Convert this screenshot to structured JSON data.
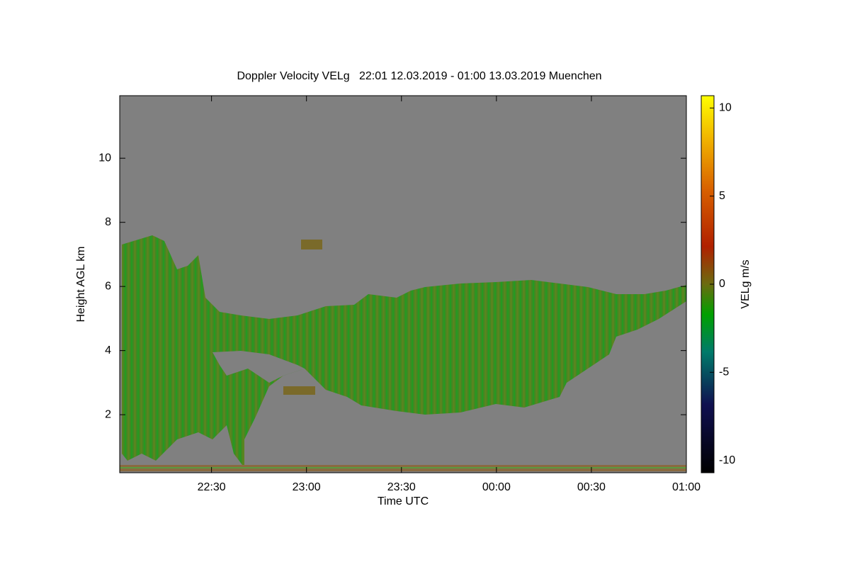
{
  "chart_data": {
    "type": "heatmap",
    "title": "Doppler Velocity VELg   22:01 12.03.2019 - 01:00 13.03.2019 Muenchen",
    "xlabel": "Time UTC",
    "ylabel": "Height AGL km",
    "colorbar_label": "VELg m/s",
    "xlim": [
      1,
      180
    ],
    "xticks": [
      {
        "value": 30,
        "label": "22:30"
      },
      {
        "value": 60,
        "label": "23:00"
      },
      {
        "value": 90,
        "label": "23:30"
      },
      {
        "value": 120,
        "label": "00:00"
      },
      {
        "value": 150,
        "label": "00:30"
      },
      {
        "value": 180,
        "label": "01:00"
      }
    ],
    "ylim": [
      0.19,
      11.95
    ],
    "yticks": [
      2,
      4,
      6,
      8,
      10
    ],
    "clim": [
      -10.7,
      10.7
    ],
    "cticks": [
      10,
      5,
      0,
      -5,
      -10
    ]
  }
}
